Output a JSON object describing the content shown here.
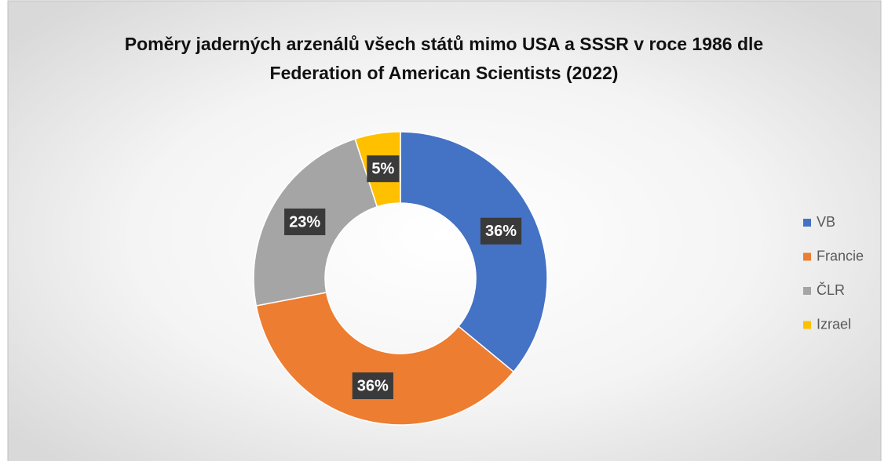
{
  "chart_data": {
    "type": "doughnut",
    "title": "Poměry jaderných arzenálů všech států mimo USA a SSSR v roce 1986 dle Federation of American Scientists (2022)",
    "categories": [
      "VB",
      "Francie",
      "ČLR",
      "Izrael"
    ],
    "values": [
      36,
      36,
      23,
      5
    ],
    "value_labels": [
      "36%",
      "36%",
      "23%",
      "5%"
    ],
    "colors": [
      "#4472c4",
      "#ed7d31",
      "#a5a5a5",
      "#ffc000"
    ],
    "legend": "right"
  }
}
